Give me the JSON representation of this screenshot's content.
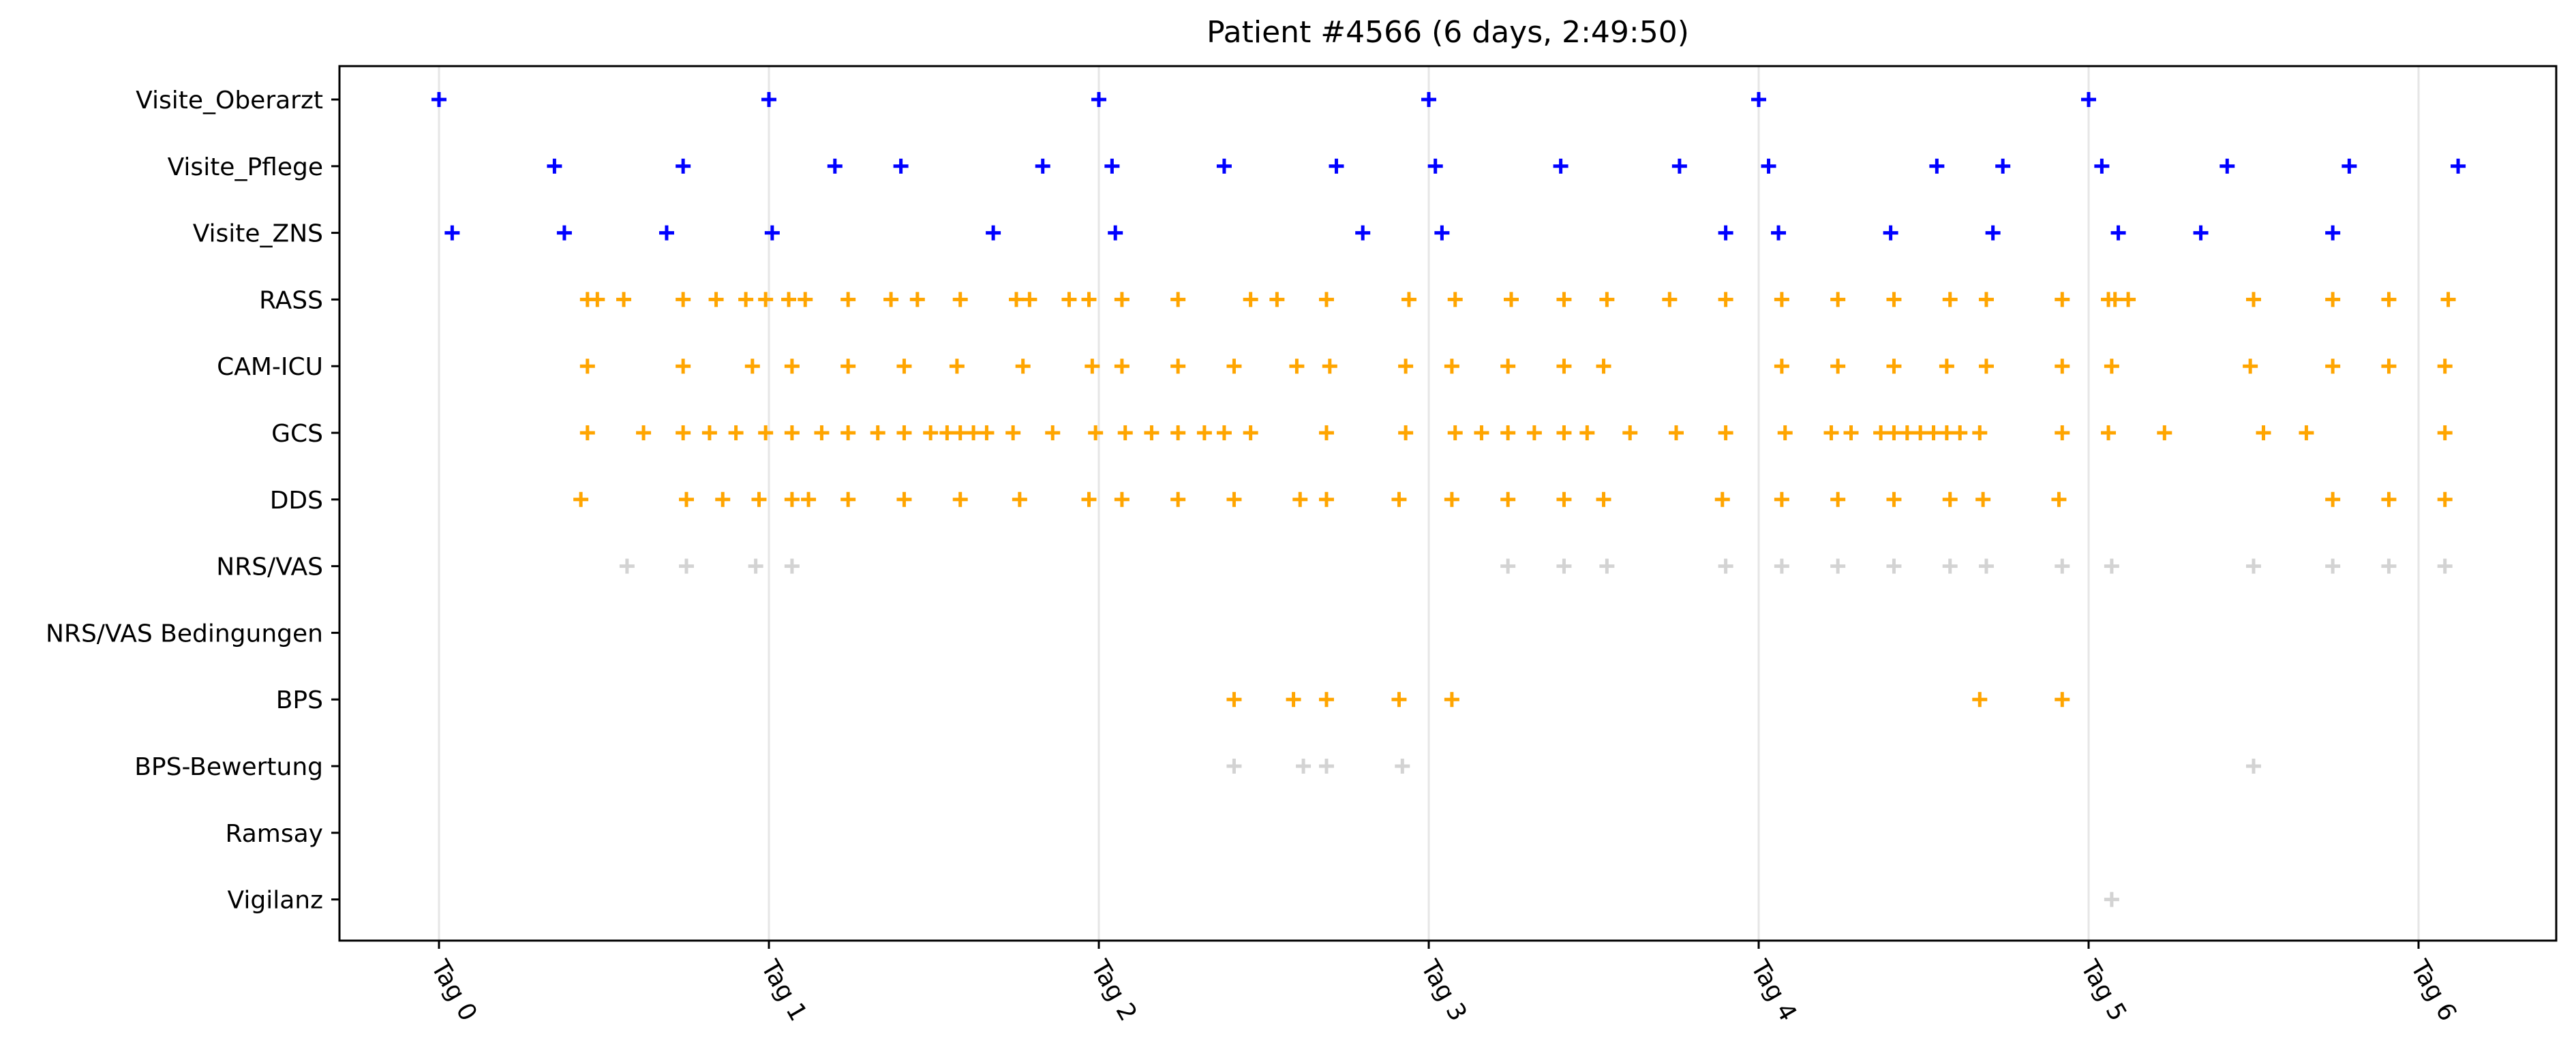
{
  "chart_data": {
    "type": "scatter",
    "title": "Patient #4566 (6 days, 2:49:50)",
    "xlabel": "",
    "ylabel": "",
    "x_unit": "days",
    "xlim": [
      -0.3,
      6.42
    ],
    "x_ticks": [
      0,
      1,
      2,
      3,
      4,
      5,
      6
    ],
    "x_tick_labels": [
      "Tag 0",
      "Tag 1",
      "Tag 2",
      "Tag 3",
      "Tag 4",
      "Tag 5",
      "Tag 6"
    ],
    "x_tick_rotation_deg": -60,
    "grid": "vertical lines at day ticks",
    "marker": "+",
    "colors": {
      "visite": "#0000ff",
      "score": "#ffa500",
      "secondary": "#d3d3d3"
    },
    "categories": [
      "Visite_Oberarzt",
      "Visite_Pflege",
      "Visite_ZNS",
      "RASS",
      "CAM-ICU",
      "GCS",
      "DDS",
      "NRS/VAS",
      "NRS/VAS Bedingungen",
      "BPS",
      "BPS-Bewertung",
      "Ramsay",
      "Vigilanz"
    ],
    "series": [
      {
        "category": "Visite_Oberarzt",
        "color": "#0000ff",
        "x": [
          0.0,
          1.0,
          2.0,
          3.0,
          4.0,
          5.0
        ]
      },
      {
        "category": "Visite_Pflege",
        "color": "#0000ff",
        "x": [
          0.35,
          0.74,
          1.2,
          1.4,
          1.83,
          2.04,
          2.38,
          2.72,
          3.02,
          3.4,
          3.76,
          4.03,
          4.54,
          4.74,
          5.04,
          5.42,
          5.79,
          6.12
        ]
      },
      {
        "category": "Visite_ZNS",
        "color": "#0000ff",
        "x": [
          0.04,
          0.38,
          0.69,
          1.01,
          1.68,
          2.05,
          2.8,
          3.04,
          3.9,
          4.06,
          4.4,
          4.71,
          5.09,
          5.34,
          5.74
        ]
      },
      {
        "category": "RASS",
        "color": "#ffa500",
        "x": [
          0.45,
          0.48,
          0.56,
          0.74,
          0.84,
          0.93,
          0.99,
          1.06,
          1.11,
          1.24,
          1.37,
          1.45,
          1.58,
          1.75,
          1.79,
          1.91,
          1.97,
          2.07,
          2.24,
          2.46,
          2.54,
          2.69,
          2.94,
          3.08,
          3.25,
          3.41,
          3.54,
          3.73,
          3.9,
          4.07,
          4.24,
          4.41,
          4.58,
          4.69,
          4.92,
          5.06,
          5.08,
          5.12,
          5.5,
          5.74,
          5.91,
          6.09
        ]
      },
      {
        "category": "CAM-ICU",
        "color": "#ffa500",
        "x": [
          0.45,
          0.74,
          0.95,
          1.07,
          1.24,
          1.41,
          1.57,
          1.77,
          1.98,
          2.07,
          2.24,
          2.41,
          2.6,
          2.7,
          2.93,
          3.07,
          3.24,
          3.41,
          3.53,
          4.07,
          4.24,
          4.41,
          4.57,
          4.69,
          4.92,
          5.07,
          5.49,
          5.74,
          5.91,
          6.08
        ]
      },
      {
        "category": "GCS",
        "color": "#ffa500",
        "x": [
          0.45,
          0.62,
          0.74,
          0.82,
          0.9,
          0.99,
          1.07,
          1.16,
          1.24,
          1.33,
          1.41,
          1.49,
          1.54,
          1.58,
          1.62,
          1.66,
          1.74,
          1.86,
          1.99,
          2.08,
          2.16,
          2.24,
          2.32,
          2.38,
          2.46,
          2.69,
          2.93,
          3.08,
          3.16,
          3.24,
          3.32,
          3.41,
          3.48,
          3.61,
          3.75,
          3.9,
          4.08,
          4.22,
          4.28,
          4.37,
          4.41,
          4.45,
          4.49,
          4.53,
          4.57,
          4.61,
          4.67,
          4.92,
          5.06,
          5.23,
          5.53,
          5.66,
          6.08
        ]
      },
      {
        "category": "DDS",
        "color": "#ffa500",
        "x": [
          0.43,
          0.75,
          0.86,
          0.97,
          1.07,
          1.12,
          1.24,
          1.41,
          1.58,
          1.76,
          1.97,
          2.07,
          2.24,
          2.41,
          2.61,
          2.69,
          2.91,
          3.07,
          3.24,
          3.41,
          3.53,
          3.89,
          4.07,
          4.24,
          4.41,
          4.58,
          4.68,
          4.91,
          5.74,
          5.91,
          6.08
        ]
      },
      {
        "category": "NRS/VAS",
        "color": "#d3d3d3",
        "x": [
          0.57,
          0.75,
          0.96,
          1.07,
          3.24,
          3.41,
          3.54,
          3.9,
          4.07,
          4.24,
          4.41,
          4.58,
          4.69,
          4.92,
          5.07,
          5.5,
          5.74,
          5.91,
          6.08
        ]
      },
      {
        "category": "NRS/VAS Bedingungen",
        "color": "#d3d3d3",
        "x": []
      },
      {
        "category": "BPS",
        "color": "#ffa500",
        "x": [
          2.41,
          2.59,
          2.69,
          2.91,
          3.07,
          4.67,
          4.92
        ]
      },
      {
        "category": "BPS-Bewertung",
        "color": "#d3d3d3",
        "x": [
          2.41,
          2.62,
          2.69,
          2.92,
          5.5
        ]
      },
      {
        "category": "Ramsay",
        "color": "#d3d3d3",
        "x": []
      },
      {
        "category": "Vigilanz",
        "color": "#d3d3d3",
        "x": [
          5.07
        ]
      }
    ]
  }
}
